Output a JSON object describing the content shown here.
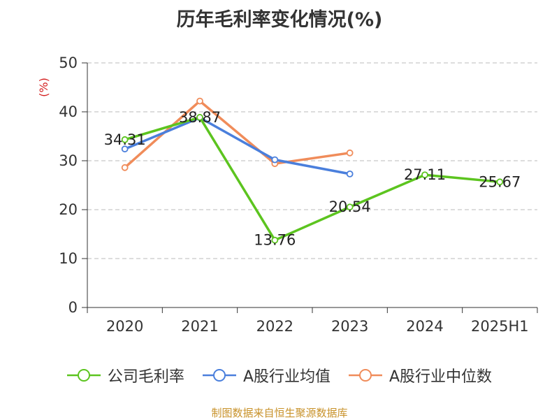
{
  "chart_data": {
    "type": "line",
    "title": "历年毛利率变化情况(%)",
    "ylabel": "(%)",
    "categories": [
      "2020",
      "2021",
      "2022",
      "2023",
      "2024",
      "2025H1"
    ],
    "ylim": [
      0,
      50
    ],
    "yticks": [
      0,
      10,
      20,
      30,
      40,
      50
    ],
    "grid": true,
    "legend_position": "bottom",
    "series": [
      {
        "name": "公司毛利率",
        "color": "#5cc41f",
        "values": [
          34.31,
          38.87,
          13.76,
          20.54,
          27.11,
          25.67
        ],
        "labels": [
          "34.31",
          "38.87",
          "13.76",
          "20.54",
          "27.11",
          "25.67"
        ]
      },
      {
        "name": "A股行业均值",
        "color": "#4a7fdc",
        "values": [
          32.4,
          38.8,
          30.2,
          27.3,
          null,
          null
        ]
      },
      {
        "name": "A股行业中位数",
        "color": "#f08c5a",
        "values": [
          28.6,
          42.2,
          29.4,
          31.6,
          null,
          null
        ]
      }
    ]
  },
  "source": "制图数据来自恒生聚源数据库"
}
